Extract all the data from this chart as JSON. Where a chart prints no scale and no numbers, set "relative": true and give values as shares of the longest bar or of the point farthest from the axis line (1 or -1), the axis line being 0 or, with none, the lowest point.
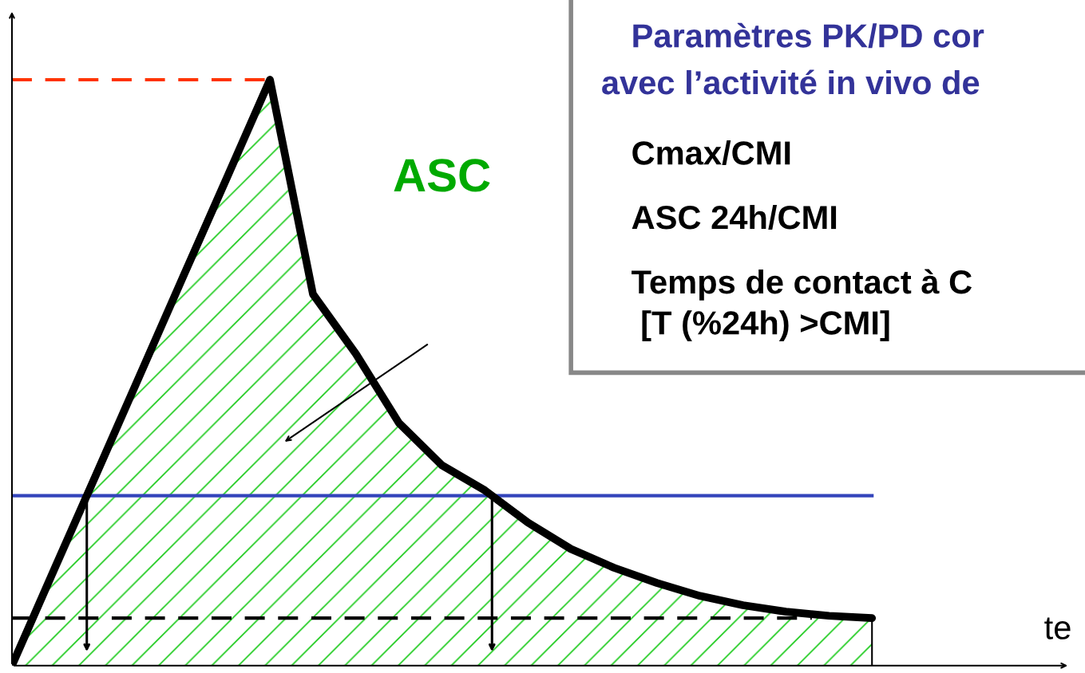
{
  "chart_data": {
    "type": "area",
    "relative": true,
    "categories": [
      null,
      null,
      null,
      null,
      null,
      null,
      null,
      null,
      null,
      null,
      null,
      null,
      null,
      null,
      null,
      null,
      null,
      null,
      null,
      null,
      null
    ],
    "series": [
      {
        "color": "#000000",
        "values": [
          0,
          0.167,
          0.333,
          0.5,
          0.667,
          0.833,
          1,
          0.634,
          0.532,
          0.414,
          0.342,
          0.299,
          0.244,
          0.199,
          0.167,
          0.141,
          0.119,
          0.103,
          0.092,
          0.085,
          0.081
        ]
      }
    ],
    "ref_lines": [
      {
        "axis": "y",
        "value": 1,
        "color": "#ff3300",
        "line_style": "dashed"
      },
      {
        "axis": "y",
        "value": 0.29,
        "color": "#3344bb",
        "line_style": "solid"
      },
      {
        "axis": "y",
        "value": 0.081,
        "color": "#000000",
        "line_style": "dashed"
      }
    ],
    "annotations": [
      "ASC",
      "Paramètres PK/PD cor",
      "avec l’activité in vivo de",
      "Cmax/CMI",
      "ASC 24h/CMI",
      "Temps de contact à C",
      " [T (%24h) >CMI]",
      "te"
    ]
  }
}
